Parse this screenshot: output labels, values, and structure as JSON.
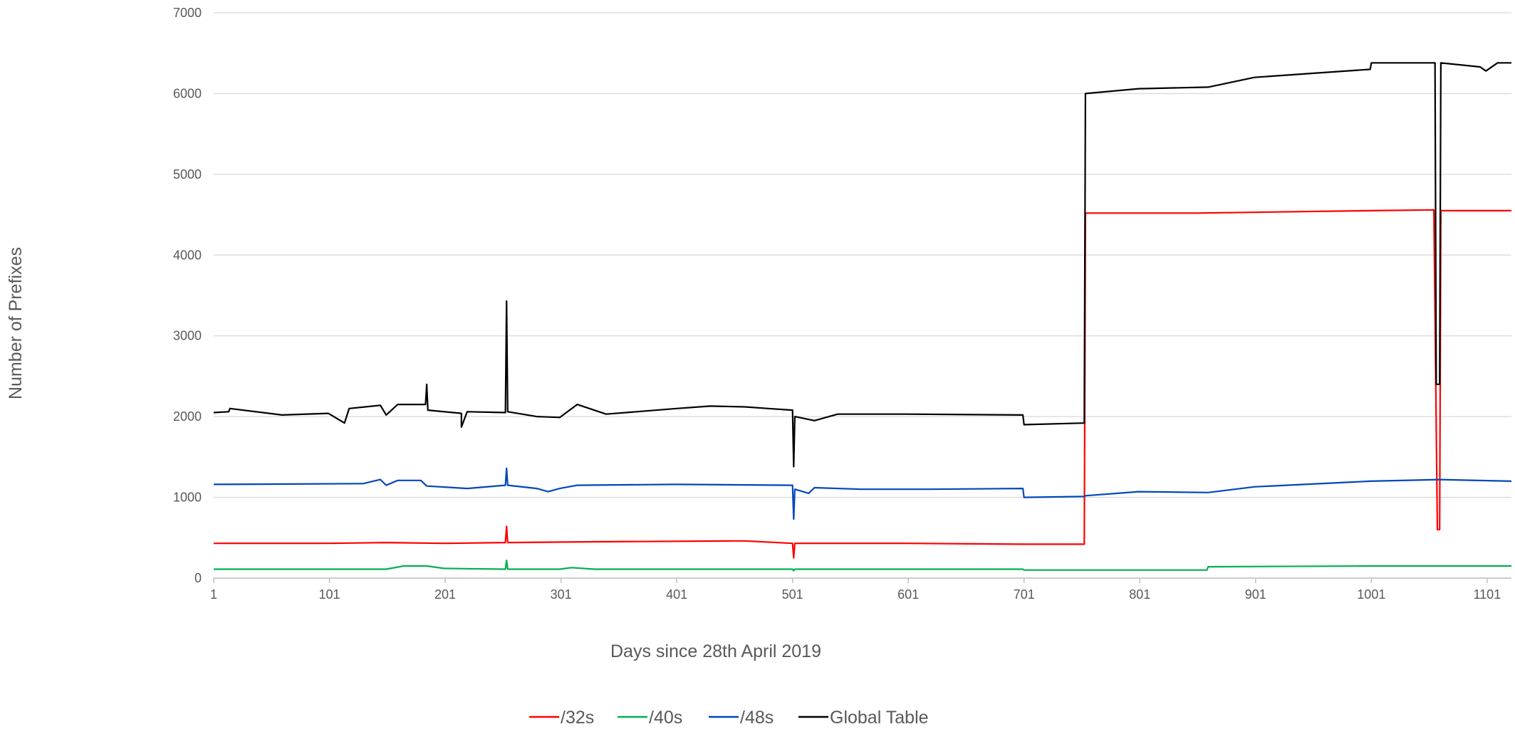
{
  "chart_data": {
    "type": "line",
    "title": "",
    "xlabel": "Days since 28th April 2019",
    "ylabel": "Number of Prefixes",
    "xlim": [
      1,
      1122
    ],
    "ylim": [
      0,
      7000
    ],
    "x_ticks": [
      "1",
      "101",
      "201",
      "301",
      "401",
      "501",
      "601",
      "701",
      "801",
      "901",
      "1001",
      "1101"
    ],
    "y_ticks": [
      "0",
      "1000",
      "2000",
      "3000",
      "4000",
      "5000",
      "6000",
      "7000"
    ],
    "grid": "horizontal",
    "legend_position": "bottom",
    "series": [
      {
        "name": "/32s",
        "color": "#ff0000",
        "points": [
          [
            1,
            430
          ],
          [
            100,
            430
          ],
          [
            150,
            440
          ],
          [
            200,
            430
          ],
          [
            253,
            440
          ],
          [
            254,
            640
          ],
          [
            255,
            440
          ],
          [
            330,
            450
          ],
          [
            450,
            460
          ],
          [
            460,
            460
          ],
          [
            501,
            430
          ],
          [
            502,
            250
          ],
          [
            503,
            430
          ],
          [
            600,
            430
          ],
          [
            700,
            420
          ],
          [
            753,
            420
          ],
          [
            754,
            4520
          ],
          [
            850,
            4520
          ],
          [
            1000,
            4550
          ],
          [
            1055,
            4560
          ],
          [
            1058,
            600
          ],
          [
            1060,
            600
          ],
          [
            1061,
            4550
          ],
          [
            1122,
            4550
          ]
        ]
      },
      {
        "name": "/40s",
        "color": "#00b050",
        "points": [
          [
            1,
            110
          ],
          [
            150,
            110
          ],
          [
            165,
            150
          ],
          [
            185,
            150
          ],
          [
            200,
            120
          ],
          [
            253,
            110
          ],
          [
            254,
            220
          ],
          [
            255,
            110
          ],
          [
            300,
            110
          ],
          [
            310,
            130
          ],
          [
            330,
            110
          ],
          [
            501,
            110
          ],
          [
            502,
            90
          ],
          [
            503,
            110
          ],
          [
            700,
            110
          ],
          [
            701,
            100
          ],
          [
            859,
            100
          ],
          [
            860,
            140
          ],
          [
            1000,
            150
          ],
          [
            1122,
            150
          ]
        ]
      },
      {
        "name": "/48s",
        "color": "#0047bb",
        "points": [
          [
            1,
            1160
          ],
          [
            130,
            1170
          ],
          [
            145,
            1220
          ],
          [
            150,
            1150
          ],
          [
            160,
            1210
          ],
          [
            180,
            1210
          ],
          [
            185,
            1140
          ],
          [
            220,
            1110
          ],
          [
            253,
            1150
          ],
          [
            254,
            1360
          ],
          [
            255,
            1150
          ],
          [
            280,
            1110
          ],
          [
            290,
            1070
          ],
          [
            300,
            1110
          ],
          [
            315,
            1150
          ],
          [
            400,
            1160
          ],
          [
            501,
            1150
          ],
          [
            502,
            730
          ],
          [
            503,
            1100
          ],
          [
            515,
            1050
          ],
          [
            520,
            1120
          ],
          [
            560,
            1100
          ],
          [
            620,
            1100
          ],
          [
            700,
            1110
          ],
          [
            701,
            1000
          ],
          [
            753,
            1010
          ],
          [
            754,
            1020
          ],
          [
            800,
            1070
          ],
          [
            860,
            1060
          ],
          [
            900,
            1130
          ],
          [
            1000,
            1200
          ],
          [
            1060,
            1220
          ],
          [
            1122,
            1200
          ]
        ]
      },
      {
        "name": "Global Table",
        "color": "#000000",
        "points": [
          [
            1,
            2050
          ],
          [
            14,
            2060
          ],
          [
            15,
            2100
          ],
          [
            60,
            2020
          ],
          [
            100,
            2040
          ],
          [
            114,
            1920
          ],
          [
            118,
            2100
          ],
          [
            145,
            2140
          ],
          [
            150,
            2020
          ],
          [
            160,
            2150
          ],
          [
            184,
            2150
          ],
          [
            185,
            2400
          ],
          [
            186,
            2080
          ],
          [
            215,
            2040
          ],
          [
            215,
            1870
          ],
          [
            220,
            2060
          ],
          [
            253,
            2050
          ],
          [
            254,
            3430
          ],
          [
            255,
            2060
          ],
          [
            280,
            2000
          ],
          [
            300,
            1990
          ],
          [
            315,
            2150
          ],
          [
            340,
            2030
          ],
          [
            401,
            2100
          ],
          [
            430,
            2130
          ],
          [
            460,
            2120
          ],
          [
            480,
            2100
          ],
          [
            501,
            2080
          ],
          [
            502,
            1380
          ],
          [
            503,
            2000
          ],
          [
            520,
            1950
          ],
          [
            540,
            2030
          ],
          [
            600,
            2030
          ],
          [
            700,
            2020
          ],
          [
            701,
            1900
          ],
          [
            753,
            1920
          ],
          [
            754,
            6000
          ],
          [
            800,
            6060
          ],
          [
            860,
            6080
          ],
          [
            900,
            6200
          ],
          [
            960,
            6260
          ],
          [
            1000,
            6300
          ],
          [
            1001,
            6380
          ],
          [
            1056,
            6380
          ],
          [
            1057,
            2400
          ],
          [
            1060,
            2400
          ],
          [
            1061,
            6380
          ],
          [
            1095,
            6330
          ],
          [
            1100,
            6280
          ],
          [
            1110,
            6380
          ],
          [
            1122,
            6380
          ]
        ]
      }
    ]
  }
}
